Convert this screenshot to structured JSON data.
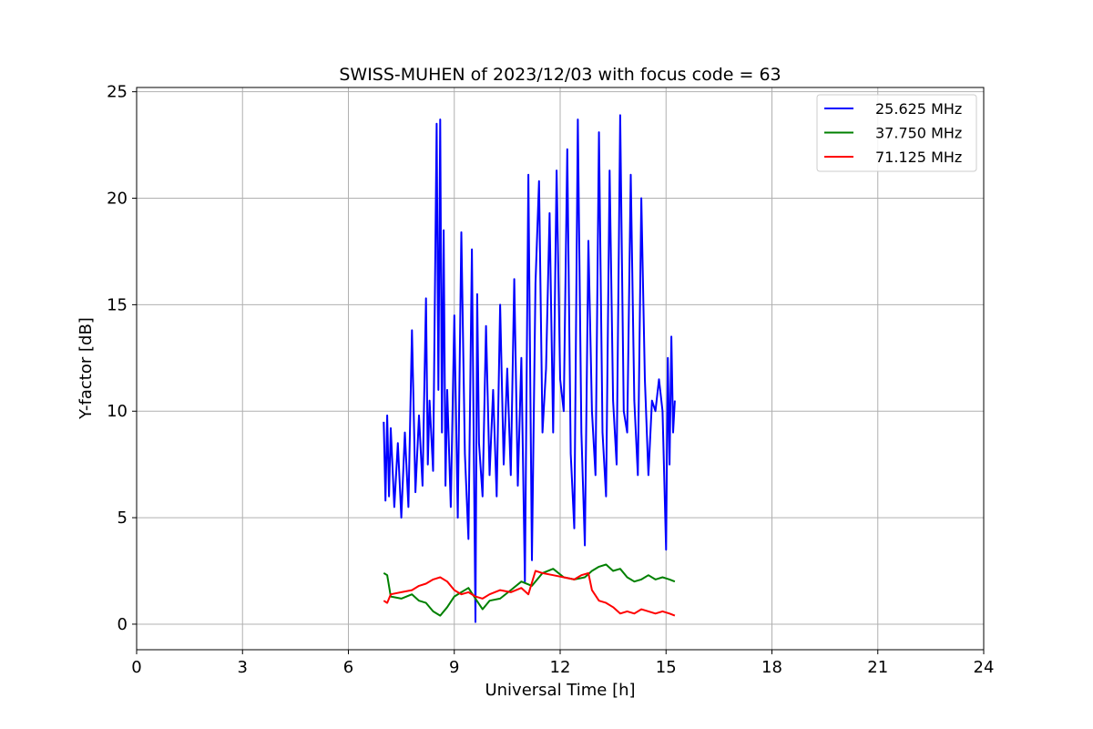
{
  "chart_data": {
    "type": "line",
    "title": "SWISS-MUHEN of 2023/12/03 with focus code = 63",
    "xlabel": "Universal Time [h]",
    "ylabel": "Y-factor [dB]",
    "xlim": [
      0,
      24
    ],
    "ylim": [
      -1.2,
      25.2
    ],
    "xticks": [
      0,
      3,
      6,
      9,
      12,
      15,
      18,
      21,
      24
    ],
    "yticks": [
      0,
      5,
      10,
      15,
      20,
      25
    ],
    "grid": true,
    "legend_position": "top-right",
    "series": [
      {
        "name": "25.625 MHz",
        "color": "#0000ff",
        "x": [
          7.0,
          7.05,
          7.1,
          7.15,
          7.2,
          7.3,
          7.4,
          7.5,
          7.6,
          7.7,
          7.8,
          7.9,
          8.0,
          8.1,
          8.2,
          8.25,
          8.3,
          8.4,
          8.5,
          8.55,
          8.6,
          8.65,
          8.7,
          8.75,
          8.8,
          8.9,
          9.0,
          9.1,
          9.2,
          9.3,
          9.4,
          9.5,
          9.6,
          9.65,
          9.7,
          9.8,
          9.9,
          10.0,
          10.1,
          10.2,
          10.3,
          10.4,
          10.5,
          10.6,
          10.7,
          10.8,
          10.9,
          11.0,
          11.1,
          11.2,
          11.3,
          11.4,
          11.5,
          11.6,
          11.7,
          11.8,
          11.9,
          12.0,
          12.1,
          12.2,
          12.3,
          12.4,
          12.5,
          12.6,
          12.7,
          12.8,
          12.9,
          13.0,
          13.1,
          13.2,
          13.3,
          13.4,
          13.5,
          13.6,
          13.7,
          13.8,
          13.9,
          14.0,
          14.1,
          14.2,
          14.3,
          14.4,
          14.5,
          14.6,
          14.7,
          14.8,
          14.9,
          15.0,
          15.05,
          15.1,
          15.15,
          15.2,
          15.25
        ],
        "y": [
          9.5,
          5.8,
          9.8,
          6.0,
          9.2,
          5.5,
          8.5,
          5.0,
          9.0,
          5.5,
          13.8,
          6.2,
          9.8,
          6.5,
          15.3,
          7.5,
          10.5,
          7.2,
          23.5,
          11.0,
          23.7,
          9.0,
          18.5,
          6.5,
          11.0,
          5.5,
          14.5,
          5.0,
          18.4,
          8.0,
          4.0,
          17.6,
          0.1,
          15.5,
          8.5,
          6.0,
          14.0,
          7.0,
          11.0,
          6.0,
          15.0,
          7.5,
          12.0,
          7.0,
          16.2,
          6.5,
          12.5,
          2.0,
          21.1,
          3.0,
          16.0,
          20.8,
          9.0,
          12.0,
          19.3,
          9.0,
          21.3,
          11.5,
          10.0,
          22.3,
          8.0,
          4.5,
          23.7,
          9.0,
          3.7,
          18.0,
          10.0,
          7.0,
          23.1,
          9.0,
          6.0,
          21.3,
          10.5,
          7.5,
          23.9,
          10.0,
          9.0,
          21.1,
          10.5,
          7.0,
          20.0,
          11.5,
          7.0,
          10.5,
          10.0,
          11.5,
          10.0,
          3.5,
          12.5,
          7.5,
          13.5,
          9.0,
          10.5
        ]
      },
      {
        "name": "37.750 MHz",
        "color": "#008000",
        "x": [
          7.0,
          7.1,
          7.2,
          7.5,
          7.8,
          8.0,
          8.2,
          8.4,
          8.6,
          8.8,
          9.0,
          9.2,
          9.4,
          9.6,
          9.8,
          10.0,
          10.3,
          10.6,
          10.9,
          11.2,
          11.5,
          11.8,
          12.1,
          12.4,
          12.7,
          12.9,
          13.1,
          13.3,
          13.5,
          13.7,
          13.9,
          14.1,
          14.3,
          14.5,
          14.7,
          14.9,
          15.1,
          15.25
        ],
        "y": [
          2.4,
          2.3,
          1.3,
          1.2,
          1.4,
          1.1,
          1.0,
          0.6,
          0.4,
          0.8,
          1.3,
          1.5,
          1.7,
          1.2,
          0.7,
          1.1,
          1.2,
          1.6,
          2.0,
          1.8,
          2.4,
          2.6,
          2.2,
          2.1,
          2.2,
          2.5,
          2.7,
          2.8,
          2.5,
          2.6,
          2.2,
          2.0,
          2.1,
          2.3,
          2.1,
          2.2,
          2.1,
          2.0
        ]
      },
      {
        "name": "71.125 MHz",
        "color": "#ff0000",
        "x": [
          7.0,
          7.1,
          7.2,
          7.5,
          7.8,
          8.0,
          8.2,
          8.4,
          8.6,
          8.8,
          9.0,
          9.2,
          9.4,
          9.6,
          9.8,
          10.0,
          10.3,
          10.6,
          10.9,
          11.1,
          11.3,
          11.5,
          11.8,
          12.1,
          12.4,
          12.6,
          12.8,
          12.9,
          13.1,
          13.3,
          13.5,
          13.7,
          13.9,
          14.1,
          14.3,
          14.5,
          14.7,
          14.9,
          15.1,
          15.25
        ],
        "y": [
          1.1,
          1.0,
          1.4,
          1.5,
          1.6,
          1.8,
          1.9,
          2.1,
          2.2,
          2.0,
          1.6,
          1.4,
          1.5,
          1.3,
          1.2,
          1.4,
          1.6,
          1.5,
          1.7,
          1.4,
          2.5,
          2.4,
          2.3,
          2.2,
          2.1,
          2.3,
          2.4,
          1.6,
          1.1,
          1.0,
          0.8,
          0.5,
          0.6,
          0.5,
          0.7,
          0.6,
          0.5,
          0.6,
          0.5,
          0.4
        ]
      }
    ]
  }
}
